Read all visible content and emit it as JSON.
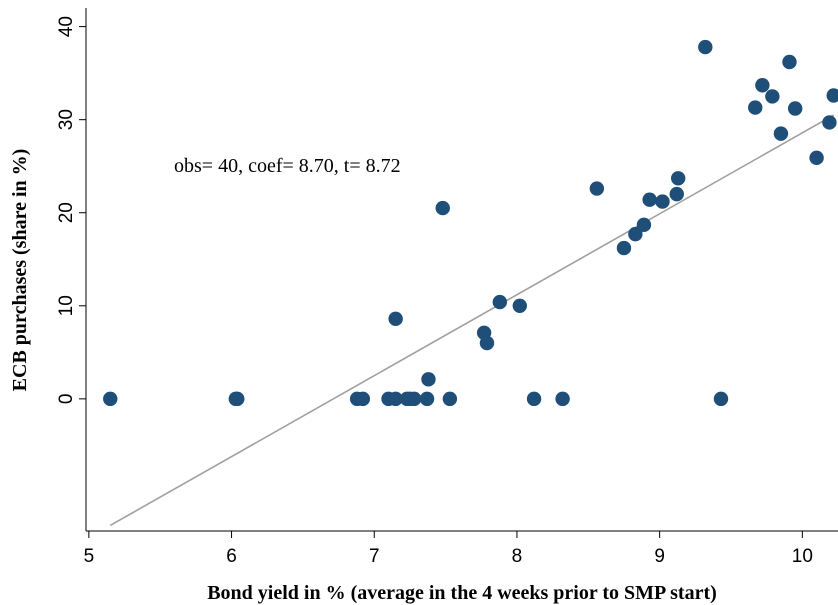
{
  "chart_data": {
    "type": "scatter",
    "xlabel": "Bond yield in % (average in the 4 weeks prior to SMP start)",
    "ylabel": "ECB purchases (share in %)",
    "annotation": "obs= 40, coef= 8.70, t= 8.72",
    "xlim": [
      4.98,
      10.25
    ],
    "ylim": [
      -14.2,
      42
    ],
    "x_ticks": [
      5,
      6,
      7,
      8,
      9,
      10
    ],
    "x_tick_labels": [
      "5",
      "6",
      "7",
      "8",
      "9",
      "10"
    ],
    "y_ticks": [
      0,
      10,
      20,
      30,
      40
    ],
    "y_tick_labels": [
      "0",
      "10",
      "20",
      "30",
      "40"
    ],
    "grid": false,
    "marker_color": "#1f4e79",
    "fit_line_color": "#a0a0a0",
    "points": [
      {
        "x": 5.15,
        "y": 0
      },
      {
        "x": 6.03,
        "y": 0
      },
      {
        "x": 6.04,
        "y": 0
      },
      {
        "x": 6.88,
        "y": 0
      },
      {
        "x": 6.92,
        "y": 0
      },
      {
        "x": 7.1,
        "y": 0
      },
      {
        "x": 7.15,
        "y": 0
      },
      {
        "x": 7.15,
        "y": 8.6
      },
      {
        "x": 7.23,
        "y": 0
      },
      {
        "x": 7.25,
        "y": 0
      },
      {
        "x": 7.28,
        "y": 0
      },
      {
        "x": 7.37,
        "y": 0
      },
      {
        "x": 7.38,
        "y": 2.1
      },
      {
        "x": 7.48,
        "y": 20.5
      },
      {
        "x": 7.53,
        "y": 0
      },
      {
        "x": 7.77,
        "y": 7.1
      },
      {
        "x": 7.79,
        "y": 6.0
      },
      {
        "x": 7.88,
        "y": 10.4
      },
      {
        "x": 8.02,
        "y": 10.0
      },
      {
        "x": 8.12,
        "y": 0
      },
      {
        "x": 8.32,
        "y": 0
      },
      {
        "x": 8.56,
        "y": 22.6
      },
      {
        "x": 8.75,
        "y": 16.2
      },
      {
        "x": 8.83,
        "y": 17.7
      },
      {
        "x": 8.89,
        "y": 18.7
      },
      {
        "x": 8.93,
        "y": 21.4
      },
      {
        "x": 9.02,
        "y": 21.2
      },
      {
        "x": 9.12,
        "y": 22.0
      },
      {
        "x": 9.13,
        "y": 23.7
      },
      {
        "x": 9.32,
        "y": 37.8
      },
      {
        "x": 9.43,
        "y": 0
      },
      {
        "x": 9.67,
        "y": 31.3
      },
      {
        "x": 9.72,
        "y": 33.7
      },
      {
        "x": 9.79,
        "y": 32.5
      },
      {
        "x": 9.85,
        "y": 28.5
      },
      {
        "x": 9.91,
        "y": 36.2
      },
      {
        "x": 9.95,
        "y": 31.2
      },
      {
        "x": 10.1,
        "y": 25.9
      },
      {
        "x": 10.19,
        "y": 29.7
      },
      {
        "x": 10.22,
        "y": 32.6
      }
    ],
    "fit_line": {
      "x": [
        5.15,
        10.22
      ],
      "y": [
        -13.6,
        30.5
      ]
    }
  }
}
